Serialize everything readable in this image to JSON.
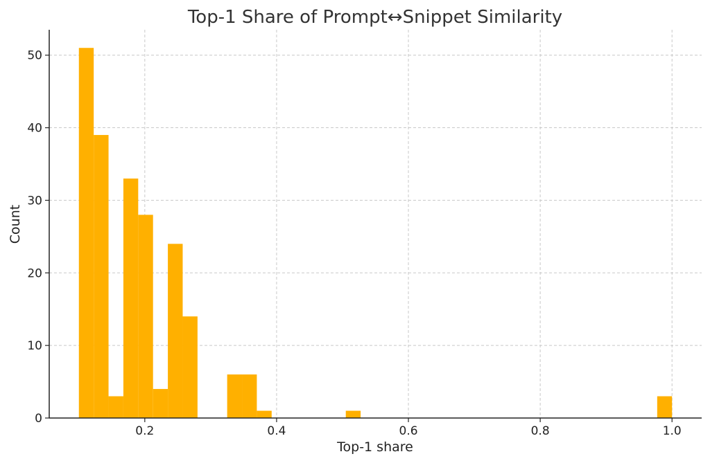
{
  "chart_data": {
    "type": "bar",
    "title": "Top-1 Share of Prompt↔Snippet Similarity",
    "xlabel": "Top-1 share",
    "ylabel": "Count",
    "xlim": [
      0.055,
      1.045
    ],
    "ylim": [
      0,
      53.5
    ],
    "xticks": [
      0.2,
      0.4,
      0.6,
      0.8,
      1.0
    ],
    "xtick_labels": [
      "0.2",
      "0.4",
      "0.6",
      "0.8",
      "1.0"
    ],
    "yticks": [
      0,
      10,
      20,
      30,
      40,
      50
    ],
    "ytick_labels": [
      "0",
      "10",
      "20",
      "30",
      "40",
      "50"
    ],
    "grid": true,
    "bar_color": "#FFB000",
    "bins": [
      {
        "x0": 0.1,
        "x1": 0.1225,
        "count": 51
      },
      {
        "x0": 0.1225,
        "x1": 0.145,
        "count": 39
      },
      {
        "x0": 0.145,
        "x1": 0.1675,
        "count": 3
      },
      {
        "x0": 0.1675,
        "x1": 0.19,
        "count": 33
      },
      {
        "x0": 0.19,
        "x1": 0.2125,
        "count": 28
      },
      {
        "x0": 0.2125,
        "x1": 0.235,
        "count": 4
      },
      {
        "x0": 0.235,
        "x1": 0.2575,
        "count": 24
      },
      {
        "x0": 0.2575,
        "x1": 0.28,
        "count": 14
      },
      {
        "x0": 0.325,
        "x1": 0.3475,
        "count": 6
      },
      {
        "x0": 0.3475,
        "x1": 0.37,
        "count": 6
      },
      {
        "x0": 0.37,
        "x1": 0.3925,
        "count": 1
      },
      {
        "x0": 0.505,
        "x1": 0.5275,
        "count": 1
      },
      {
        "x0": 0.9775,
        "x1": 1.0,
        "count": 3
      }
    ]
  }
}
